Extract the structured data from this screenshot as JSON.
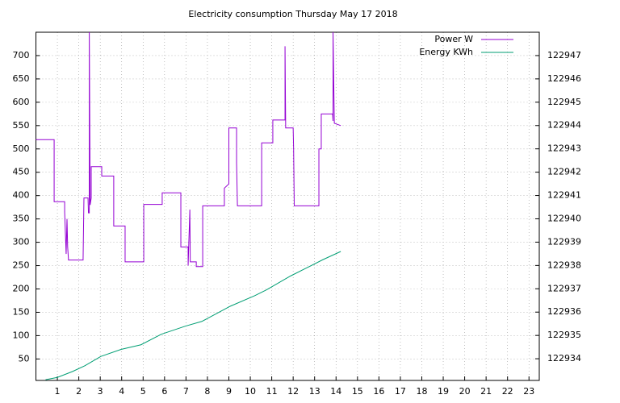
{
  "chart_data": {
    "type": "line",
    "title": "Electricity consumption Thursday May 17 2018",
    "xlim": [
      0,
      23.48
    ],
    "xticks": [
      1,
      2,
      3,
      4,
      5,
      6,
      7,
      8,
      9,
      10,
      11,
      12,
      13,
      14,
      15,
      16,
      17,
      18,
      19,
      20,
      21,
      22,
      23
    ],
    "ylim": [
      4,
      750
    ],
    "yticks": [
      50,
      100,
      150,
      200,
      250,
      300,
      350,
      400,
      450,
      500,
      550,
      600,
      650,
      700
    ],
    "y2lim": [
      122933.07,
      122948
    ],
    "y2ticks": [
      122934,
      122935,
      122936,
      122937,
      122938,
      122939,
      122940,
      122941,
      122942,
      122943,
      122944,
      122945,
      122946,
      122947
    ],
    "grid": true,
    "legend": "top right",
    "series": [
      {
        "name": "Power W",
        "color": "#9400d3",
        "x": [
          0,
          0.85,
          0.85,
          1.34,
          1.34,
          1.41,
          1.45,
          1.48,
          1.52,
          2.2,
          2.24,
          2.43,
          2.45,
          2.49,
          2.49,
          2.53,
          2.58,
          2.58,
          3.07,
          3.07,
          3.63,
          3.63,
          4.16,
          4.16,
          5.03,
          5.03,
          5.89,
          5.89,
          6.76,
          6.76,
          7.1,
          7.1,
          7.18,
          7.2,
          7.48,
          7.48,
          7.78,
          7.78,
          8.79,
          8.79,
          9.0,
          9.0,
          9.36,
          9.36,
          9.4,
          10.53,
          10.53,
          11.05,
          11.05,
          11.62,
          11.62,
          11.65,
          12.0,
          12.02,
          12.05,
          13.2,
          13.2,
          13.31,
          13.31,
          13.84,
          13.86,
          13.86,
          13.92,
          14.22
        ],
        "values": [
          520,
          520,
          387,
          387,
          365,
          275,
          350,
          290,
          262,
          262,
          395,
          395,
          363,
          363,
          750,
          380,
          395,
          462,
          462,
          442,
          442,
          335,
          335,
          258,
          258,
          381,
          381,
          406,
          406,
          290,
          290,
          250,
          370,
          258,
          258,
          248,
          248,
          378,
          378,
          416,
          425,
          545,
          545,
          470,
          378,
          378,
          513,
          513,
          562,
          562,
          720,
          545,
          545,
          500,
          378,
          378,
          500,
          500,
          575,
          575,
          560,
          750,
          555,
          550
        ]
      },
      {
        "name": "Energy KWh",
        "color": "#009e73",
        "axis": "y2",
        "x": [
          0.45,
          1.0,
          1.7,
          2.28,
          3.03,
          3.97,
          4.9,
          5.85,
          6.98,
          7.74,
          9.06,
          10.2,
          10.75,
          11.88,
          12.64,
          13.39,
          14.22
        ],
        "values": [
          122933.1,
          122933.2,
          122933.45,
          122933.7,
          122934.1,
          122934.4,
          122934.6,
          122935.05,
          122935.4,
          122935.6,
          122936.25,
          122936.7,
          122936.95,
          122937.55,
          122937.9,
          122938.25,
          122938.6
        ]
      }
    ]
  }
}
